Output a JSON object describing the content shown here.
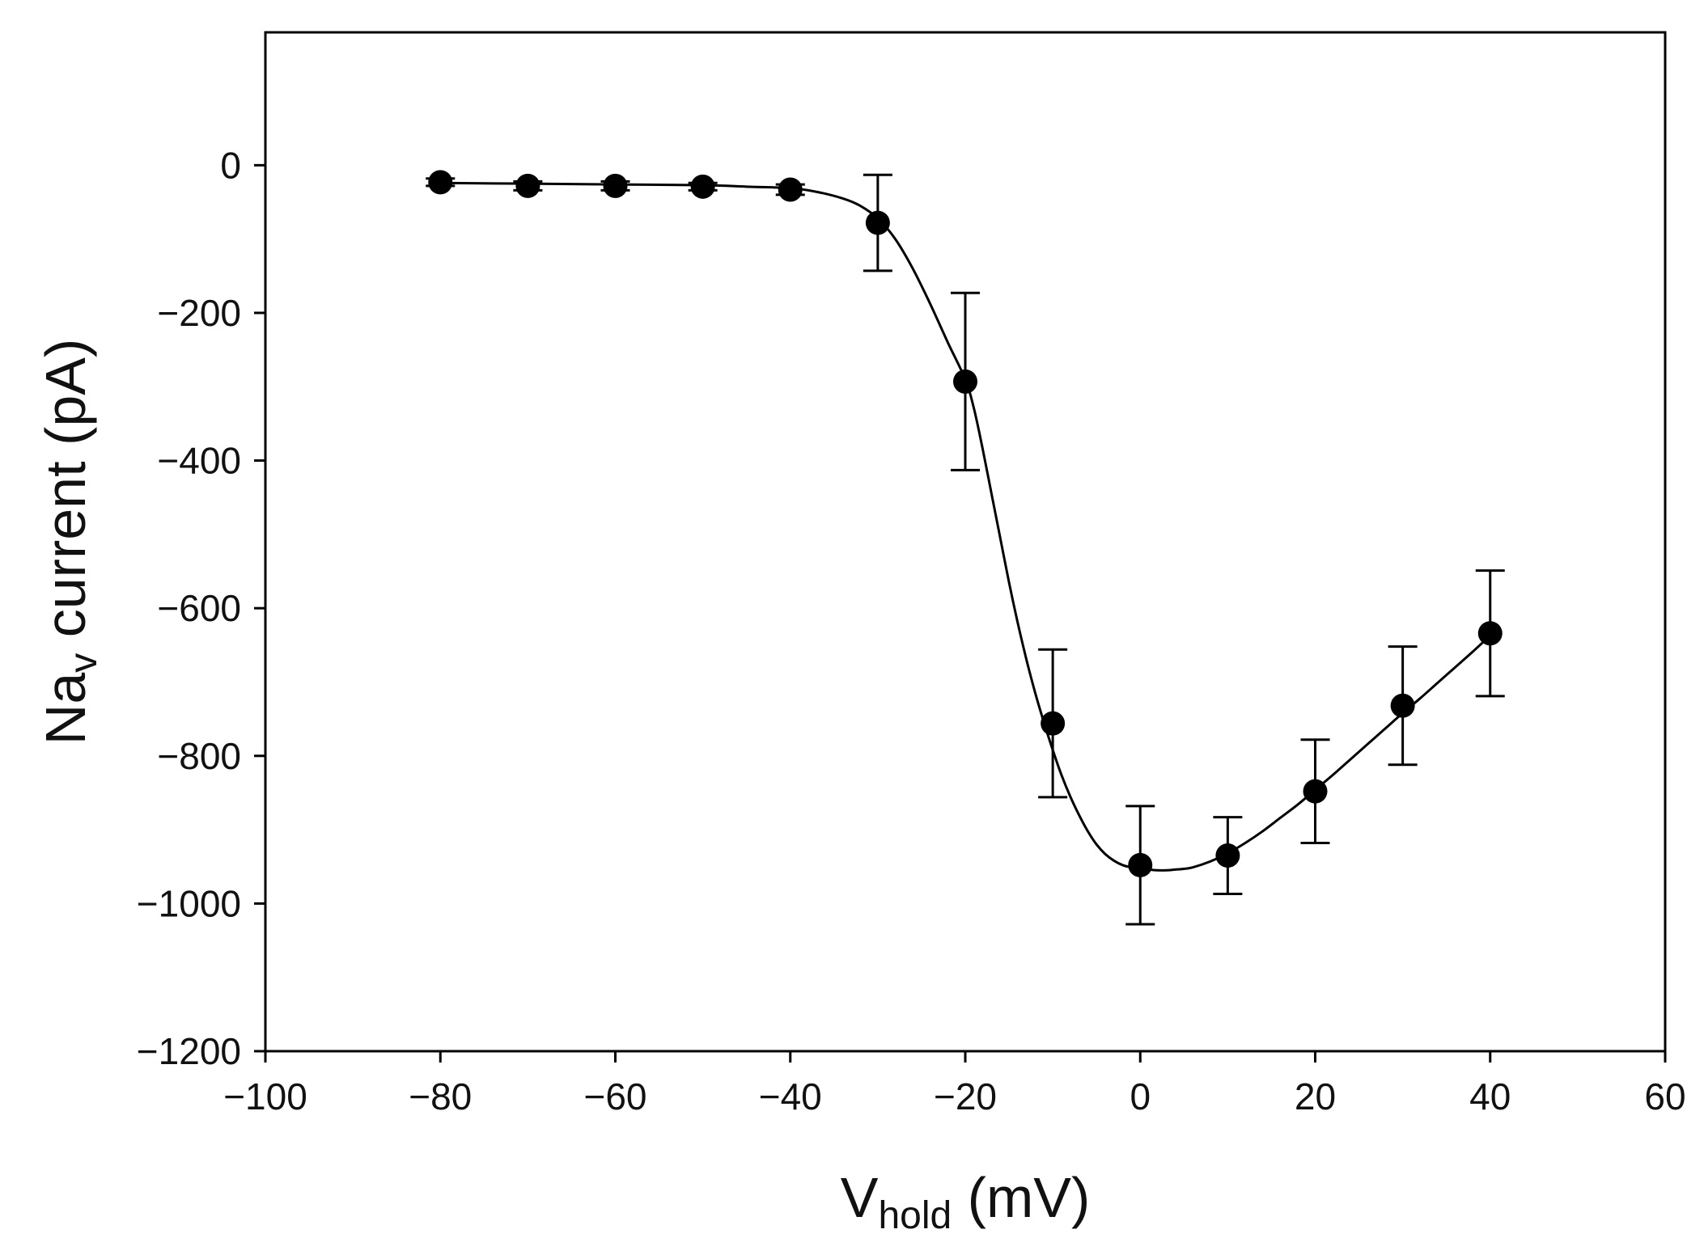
{
  "chart_data": {
    "type": "scatter",
    "title": "",
    "xlabel": {
      "main": "V",
      "sub": "hold",
      "unit": " (mV)"
    },
    "ylabel": {
      "main": "Na",
      "sub": "v",
      "unit": " current (pA)"
    },
    "xlim": [
      -100,
      60
    ],
    "ylim": [
      -1200,
      180
    ],
    "xticks": [
      -100,
      -80,
      -60,
      -40,
      -20,
      0,
      20,
      40,
      60
    ],
    "yticks": [
      0,
      -200,
      -400,
      -600,
      -800,
      -1000,
      -1200
    ],
    "xtick_labels": [
      "−100",
      "−80",
      "−60",
      "−40",
      "−20",
      "0",
      "20",
      "40",
      "60"
    ],
    "ytick_labels": [
      "0",
      "−200",
      "−400",
      "−600",
      "−800",
      "−1000",
      "−1200"
    ],
    "grid": false,
    "legend": "none",
    "marker_color": "#000000",
    "series": [
      {
        "name": "Nav current",
        "x": [
          -80,
          -70,
          -60,
          -50,
          -40,
          -30,
          -20,
          -10,
          0,
          10,
          20,
          30,
          40
        ],
        "y": [
          -23,
          -28,
          -28,
          -29,
          -33,
          -78,
          -293,
          -756,
          -948,
          -935,
          -848,
          -732,
          -634
        ],
        "error": [
          5,
          6,
          6,
          5,
          7,
          65,
          120,
          100,
          80,
          52,
          70,
          80,
          85
        ]
      }
    ],
    "fit_curve": {
      "x": [
        -80,
        -70,
        -60,
        -50,
        -45,
        -40,
        -37,
        -34,
        -32,
        -30,
        -28,
        -26,
        -24,
        -22,
        -20,
        -19,
        -18,
        -17,
        -16,
        -15,
        -14,
        -13,
        -12,
        -11,
        -10,
        -9,
        -8,
        -7,
        -6,
        -5,
        -4,
        -3,
        -2,
        -1,
        0,
        1,
        2,
        3,
        4,
        5,
        6,
        8,
        10,
        12,
        14,
        16,
        18,
        20,
        22,
        24,
        26,
        28,
        30,
        32,
        34,
        36,
        38,
        40
      ],
      "y": [
        -24,
        -25,
        -26,
        -27,
        -29,
        -31,
        -36,
        -45,
        -55,
        -72,
        -100,
        -140,
        -188,
        -240,
        -290,
        -330,
        -385,
        -445,
        -505,
        -565,
        -620,
        -670,
        -715,
        -755,
        -792,
        -826,
        -855,
        -880,
        -902,
        -920,
        -933,
        -942,
        -948,
        -951,
        -953,
        -954,
        -955,
        -955,
        -954,
        -953,
        -951,
        -943,
        -932,
        -918,
        -902,
        -884,
        -866,
        -846,
        -826,
        -805,
        -784,
        -763,
        -742,
        -722,
        -701,
        -680,
        -659,
        -637
      ]
    }
  }
}
